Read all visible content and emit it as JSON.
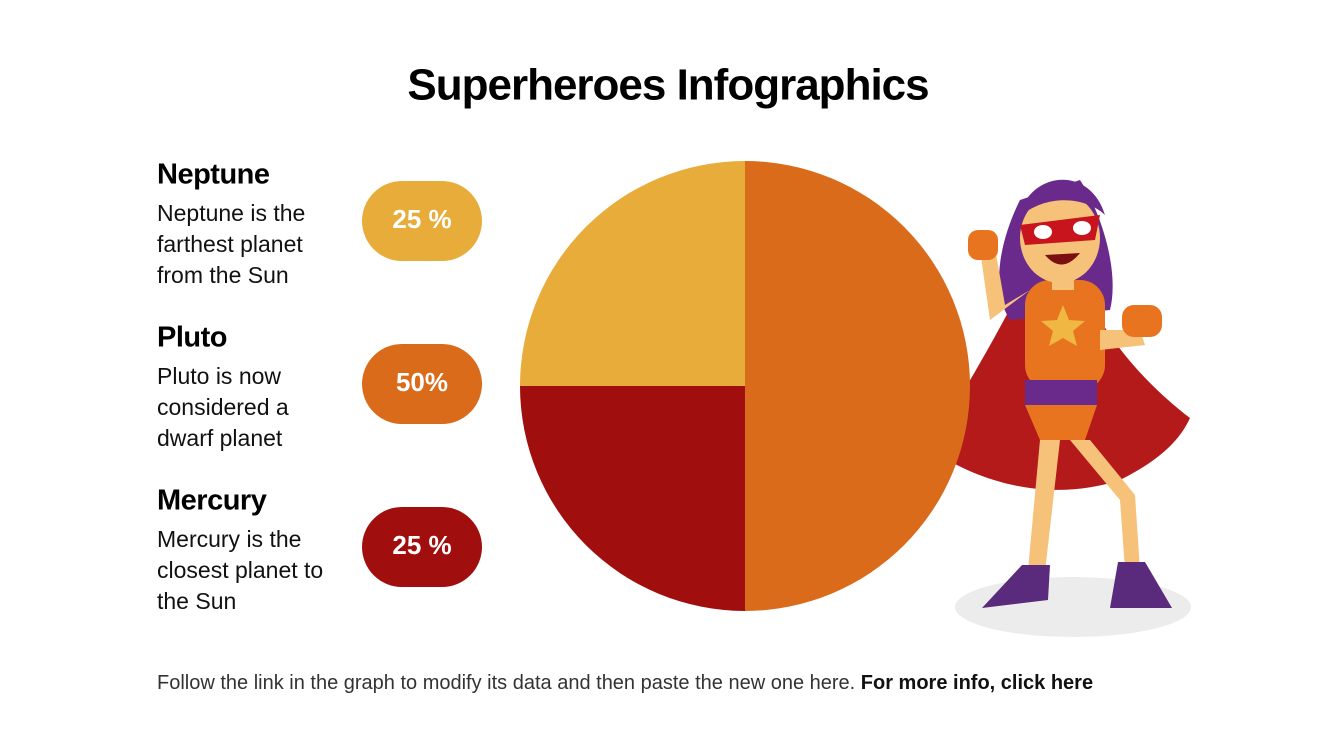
{
  "chart_data": {
    "type": "pie",
    "title": "Superheroes Infographics",
    "categories": [
      "Neptune",
      "Pluto",
      "Mercury"
    ],
    "descriptions": [
      [
        "Neptune is the",
        "farthest planet",
        "from the Sun"
      ],
      [
        "Pluto is now",
        "considered a",
        "dwarf planet"
      ],
      [
        "Mercury is the",
        "closest planet to",
        "the Sun"
      ]
    ],
    "values": [
      25,
      50,
      25
    ],
    "value_labels": [
      "25 %",
      "50%",
      "25 %"
    ],
    "colors": [
      "#e8ac3a",
      "#d96b1a",
      "#a00e0e"
    ]
  },
  "footer": {
    "text": "Follow the link in the graph to modify its data and then paste the new one here.",
    "link": "For more info, click here"
  }
}
